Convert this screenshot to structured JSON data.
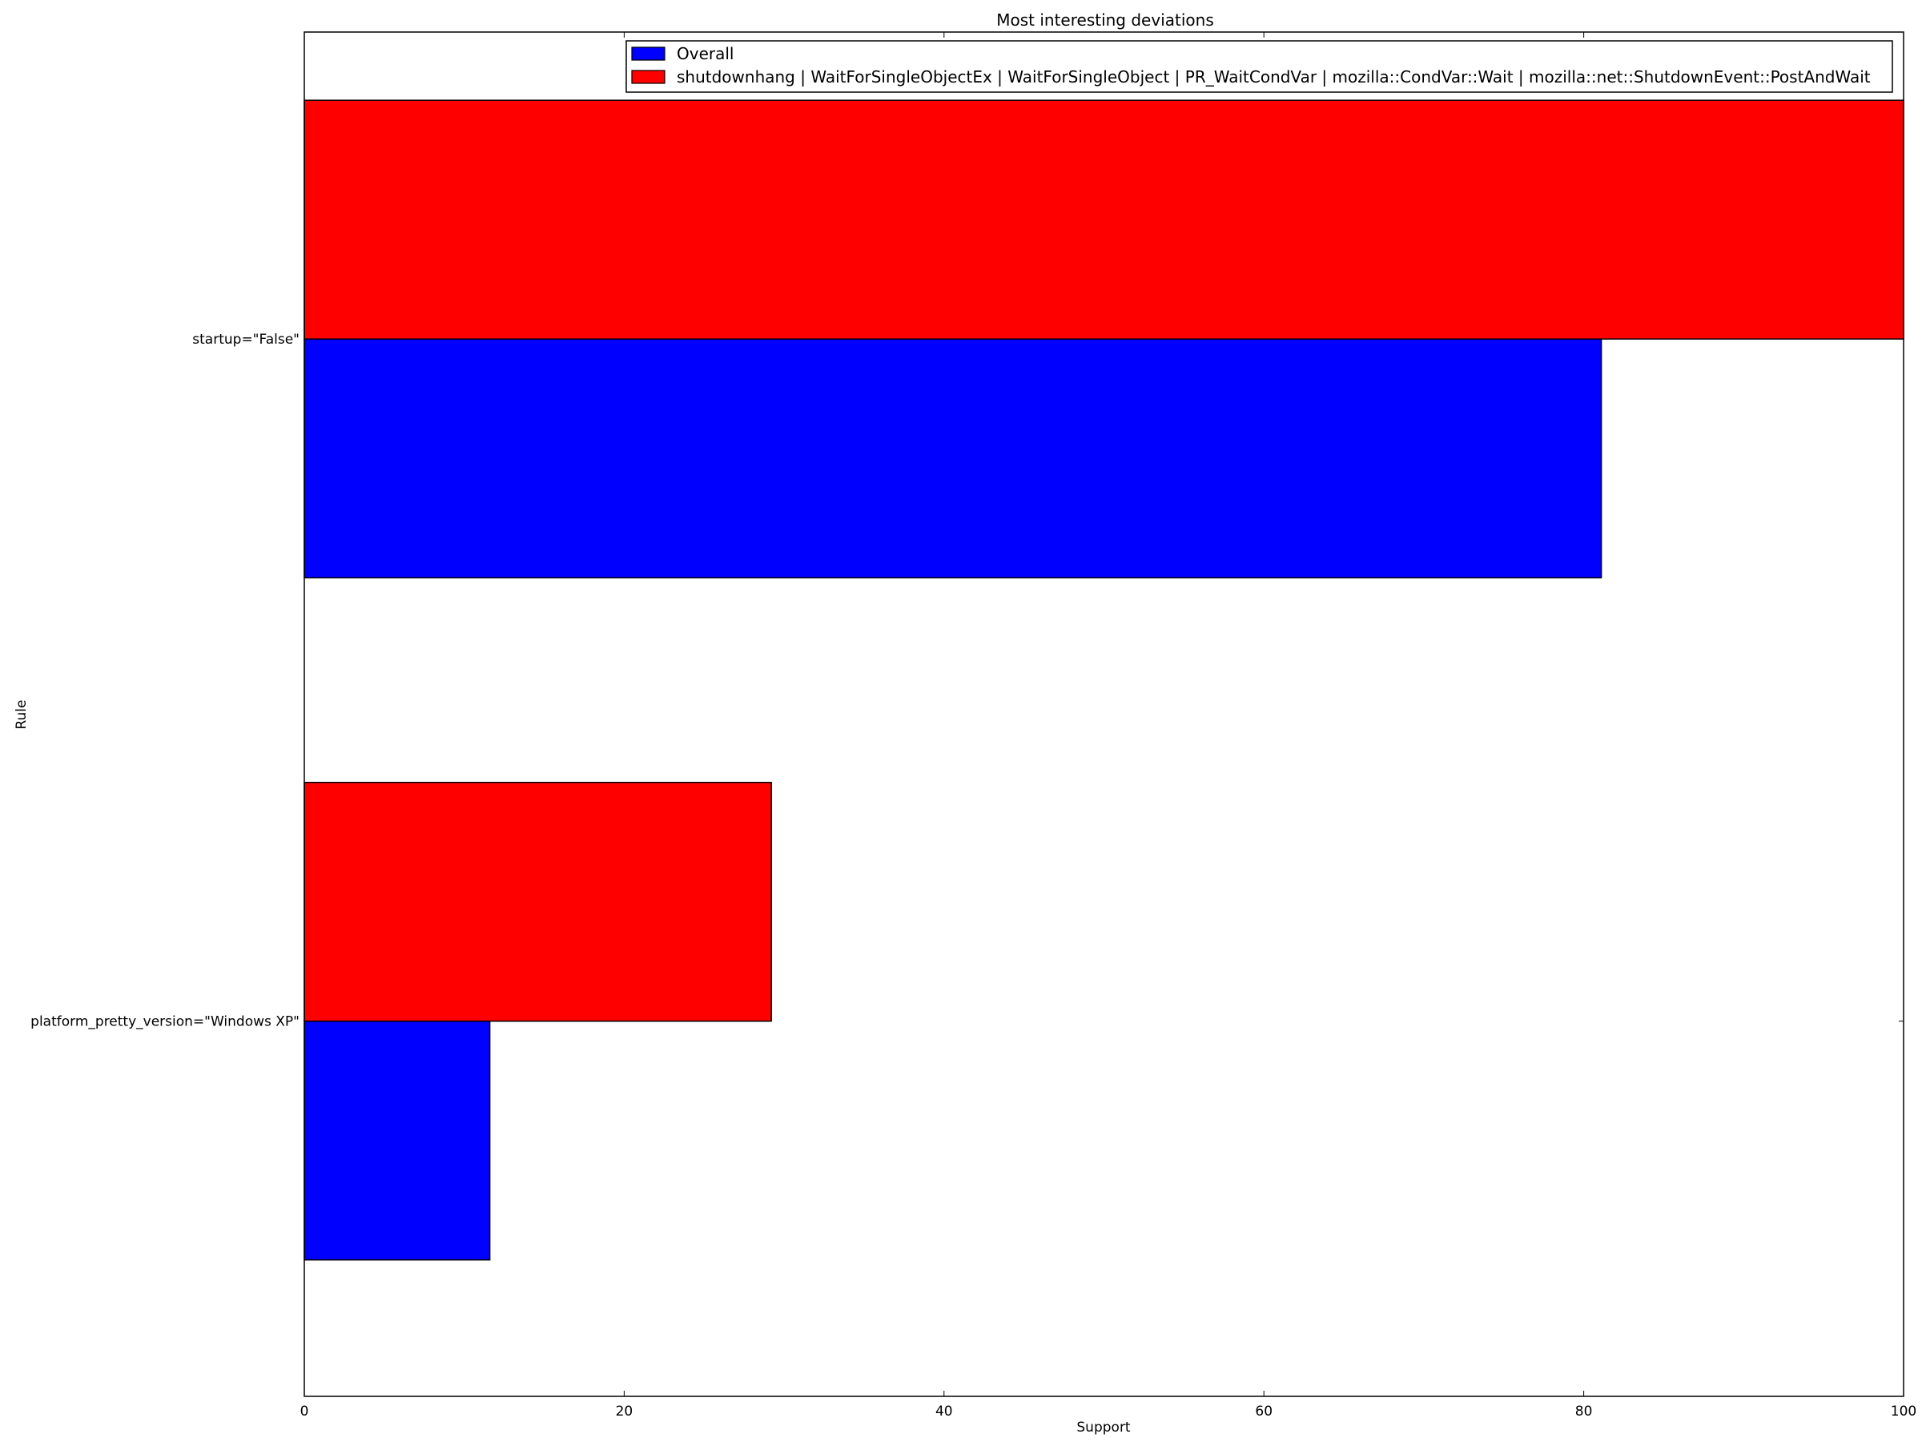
{
  "chart_data": {
    "type": "bar",
    "orientation": "horizontal",
    "title": "Most interesting deviations",
    "xlabel": "Support",
    "ylabel": "Rule",
    "xlim": [
      0,
      100
    ],
    "x_ticks": [
      0,
      20,
      40,
      60,
      80,
      100
    ],
    "categories": [
      "startup=\"False\"",
      "platform_pretty_version=\"Windows XP\""
    ],
    "series": [
      {
        "name": "Overall",
        "color": "#0000ff",
        "values": [
          81.1,
          11.6
        ]
      },
      {
        "name": "shutdownhang | WaitForSingleObjectEx | WaitForSingleObject | PR_WaitCondVar | mozilla::CondVar::Wait | mozilla::net::ShutdownEvent::PostAndWait",
        "color": "#ff0000",
        "values": [
          100,
          29.2
        ]
      }
    ],
    "legend_position": "top-right",
    "grid": false
  }
}
